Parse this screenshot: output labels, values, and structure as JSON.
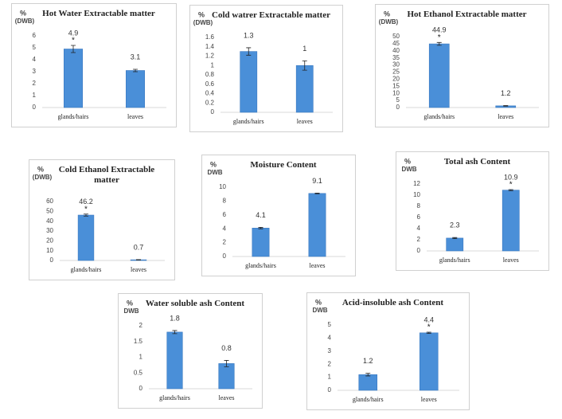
{
  "chart_data": [
    {
      "type": "bar",
      "title": "Hot Water Extractable matter",
      "y_label": "%",
      "y_unit": "(DWB)",
      "categories": [
        "glands/hairs",
        "leaves"
      ],
      "values": [
        4.9,
        3.1
      ],
      "errors": [
        0.3,
        0.1
      ],
      "significance": [
        "*",
        null
      ],
      "color": "#4a8fd8",
      "ylim": [
        0,
        6
      ],
      "yticks": [
        0,
        1,
        2,
        3,
        4,
        5,
        6
      ]
    },
    {
      "type": "bar",
      "title": "Cold watrer Extractable matter",
      "y_label": "%",
      "y_unit": "(DWB)",
      "categories": [
        "glands/hairs",
        "leaves"
      ],
      "values": [
        1.3,
        1
      ],
      "errors": [
        0.08,
        0.1
      ],
      "significance": [
        null,
        null
      ],
      "color": "#4a8fd8",
      "ylim": [
        0,
        1.6
      ],
      "yticks": [
        0,
        0.2,
        0.4,
        0.6,
        0.8,
        1,
        1.2,
        1.4,
        1.6
      ]
    },
    {
      "type": "bar",
      "title": "Hot Ethanol Extractable matter",
      "y_label": "%",
      "y_unit": "(DWB)",
      "categories": [
        "glands/hairs",
        "leaves"
      ],
      "values": [
        44.9,
        1.2
      ],
      "errors": [
        1,
        0.2
      ],
      "significance": [
        "*",
        null
      ],
      "color": "#4a8fd8",
      "ylim": [
        0,
        50
      ],
      "yticks": [
        0,
        5,
        10,
        15,
        20,
        25,
        30,
        35,
        40,
        45,
        50
      ]
    },
    {
      "type": "bar",
      "title": "Cold Ethanol Extractable matter",
      "y_label": "%",
      "y_unit": "(DWB)",
      "categories": [
        "glands/hairs",
        "leaves"
      ],
      "values": [
        46.2,
        0.7
      ],
      "errors": [
        1,
        0.2
      ],
      "significance": [
        "*",
        null
      ],
      "color": "#4a8fd8",
      "ylim": [
        0,
        60
      ],
      "yticks": [
        0,
        10,
        20,
        30,
        40,
        50,
        60
      ]
    },
    {
      "type": "bar",
      "title": "Moisture Content",
      "y_label": "%",
      "y_unit": "DWB",
      "categories": [
        "glands/hairs",
        "leaves"
      ],
      "values": [
        4.1,
        9.1
      ],
      "errors": [
        0.1,
        0.05
      ],
      "significance": [
        null,
        null
      ],
      "color": "#4a8fd8",
      "ylim": [
        0,
        10
      ],
      "yticks": [
        0,
        2,
        4,
        6,
        8,
        10
      ]
    },
    {
      "type": "bar",
      "title": "Total ash Content",
      "y_label": "%",
      "y_unit": "DWB",
      "categories": [
        "glands/hairs",
        "leaves"
      ],
      "values": [
        2.3,
        10.9
      ],
      "errors": [
        0.1,
        0.1
      ],
      "significance": [
        null,
        "*"
      ],
      "color": "#4a8fd8",
      "ylim": [
        0,
        12
      ],
      "yticks": [
        0,
        2,
        4,
        6,
        8,
        10,
        12
      ]
    },
    {
      "type": "bar",
      "title": "Water soluble ash Content",
      "y_label": "%",
      "y_unit": "DWB",
      "categories": [
        "glands/hairs",
        "leaves"
      ],
      "values": [
        1.8,
        0.8
      ],
      "errors": [
        0.05,
        0.1
      ],
      "significance": [
        null,
        null
      ],
      "color": "#4a8fd8",
      "ylim": [
        0,
        2
      ],
      "yticks": [
        0,
        0.5,
        1,
        1.5,
        2
      ]
    },
    {
      "type": "bar",
      "title": "Acid-insoluble ash Content",
      "y_label": "%",
      "y_unit": "DWB",
      "categories": [
        "glands/hairs",
        "leaves"
      ],
      "values": [
        1.2,
        4.4
      ],
      "errors": [
        0.1,
        0.05
      ],
      "significance": [
        null,
        "*"
      ],
      "color": "#4a8fd8",
      "ylim": [
        0,
        5
      ],
      "yticks": [
        0,
        1,
        2,
        3,
        4,
        5
      ]
    }
  ]
}
